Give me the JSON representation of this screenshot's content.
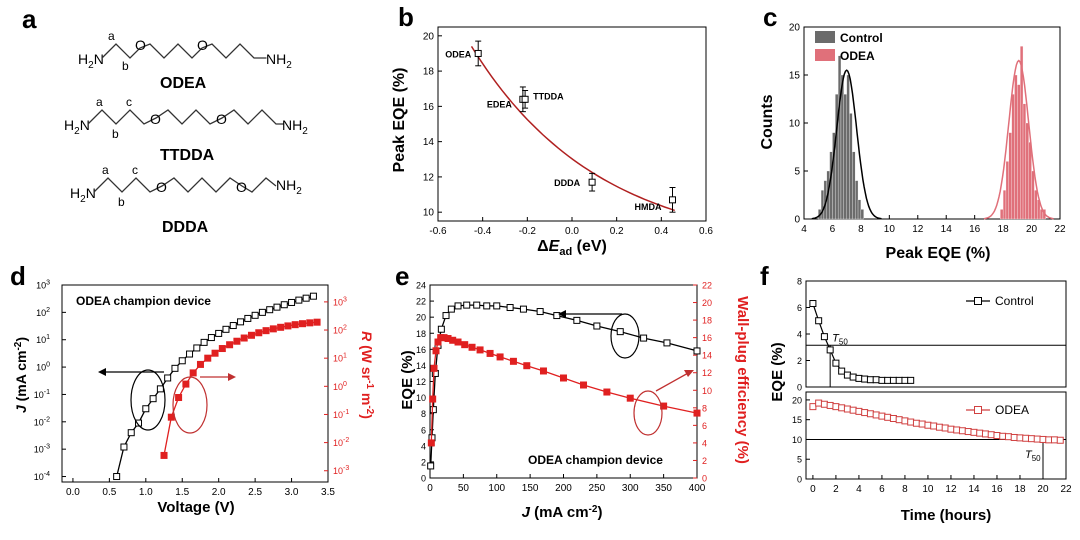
{
  "panel_labels": [
    "a",
    "b",
    "c",
    "d",
    "e",
    "f"
  ],
  "molecules": [
    {
      "name": "ODEA",
      "left": "H2N",
      "right": "NH2",
      "left_main": "H",
      "left_sub": "2",
      "left_tail": "N",
      "right_main": "NH",
      "right_sub": "2",
      "carbon_labels": [
        "a",
        "b"
      ]
    },
    {
      "name": "TTDDA",
      "left": "H2N",
      "right": "NH2",
      "left_main": "H",
      "left_sub": "2",
      "left_tail": "N",
      "right_main": "NH",
      "right_sub": "2",
      "carbon_labels": [
        "a",
        "b",
        "c"
      ]
    },
    {
      "name": "DDDA",
      "left": "H2N",
      "right": "NH2",
      "left_main": "H",
      "left_sub": "2",
      "left_tail": "N",
      "right_main": "NH",
      "right_sub": "2",
      "carbon_labels": [
        "a",
        "b",
        "c"
      ]
    }
  ],
  "atom_O": "O",
  "chart_data": [
    {
      "id": "b",
      "type": "scatter",
      "title": "",
      "xlabel": "ΔE_ad (eV)",
      "xlabel_main": "Δ",
      "xlabel_italic": "E",
      "xlabel_sub": "ad",
      "xlabel_unit": " (eV)",
      "ylabel": "Peak EQE (%)",
      "xlim": [
        -0.6,
        0.6
      ],
      "ylim": [
        9.5,
        20.5
      ],
      "xticks": [
        "-0.6",
        "-0.4",
        "-0.2",
        "0.0",
        "0.2",
        "0.4",
        "0.6"
      ],
      "yticks": [
        "10",
        "12",
        "14",
        "16",
        "18",
        "20"
      ],
      "points": [
        {
          "label": "ODEA",
          "x": -0.42,
          "y": 19.0,
          "err": 0.7
        },
        {
          "label": "EDEA",
          "x": -0.22,
          "y": 16.4,
          "err": 0.7
        },
        {
          "label": "TTDDA",
          "x": -0.21,
          "y": 16.4,
          "err": 0.5
        },
        {
          "label": "DDDA",
          "x": 0.09,
          "y": 11.7,
          "err": 0.5
        },
        {
          "label": "HMDA",
          "x": 0.45,
          "y": 10.7,
          "err": 0.7
        }
      ],
      "fit": {
        "color": "#b02020",
        "x": [
          -0.45,
          0.46
        ],
        "y_start": 19.4,
        "y_end": 10.1
      }
    },
    {
      "id": "c",
      "type": "bar",
      "xlabel": "Peak EQE (%)",
      "ylabel": "Counts",
      "xlim": [
        4,
        22
      ],
      "ylim": [
        0,
        20
      ],
      "xticks": [
        "4",
        "6",
        "8",
        "10",
        "12",
        "14",
        "16",
        "18",
        "20",
        "22"
      ],
      "yticks": [
        "0",
        "5",
        "10",
        "15",
        "20"
      ],
      "legend": {
        "position": "top-left"
      },
      "series": [
        {
          "name": "Control",
          "color": "#6b6b6b",
          "bin_width": 0.2,
          "bins": [
            [
              5.1,
              1
            ],
            [
              5.3,
              3
            ],
            [
              5.5,
              4
            ],
            [
              5.7,
              5
            ],
            [
              5.9,
              7
            ],
            [
              6.1,
              9
            ],
            [
              6.3,
              13
            ],
            [
              6.5,
              17
            ],
            [
              6.7,
              15
            ],
            [
              6.9,
              13
            ],
            [
              7.1,
              15
            ],
            [
              7.3,
              11
            ],
            [
              7.5,
              7
            ],
            [
              7.7,
              4
            ],
            [
              7.9,
              2
            ],
            [
              8.1,
              1
            ]
          ],
          "fit": {
            "color": "#000000",
            "mean": 7.0,
            "sigma": 0.7,
            "peak": 15.5
          }
        },
        {
          "name": "ODEA",
          "color": "#e0707a",
          "bin_width": 0.2,
          "bins": [
            [
              17.9,
              1
            ],
            [
              18.1,
              3
            ],
            [
              18.3,
              6
            ],
            [
              18.5,
              9
            ],
            [
              18.7,
              13
            ],
            [
              18.9,
              15
            ],
            [
              19.1,
              14
            ],
            [
              19.3,
              18
            ],
            [
              19.5,
              12
            ],
            [
              19.7,
              10
            ],
            [
              19.9,
              8
            ],
            [
              20.1,
              5
            ],
            [
              20.3,
              3
            ],
            [
              20.5,
              2
            ],
            [
              20.7,
              1
            ],
            [
              20.9,
              1
            ]
          ],
          "fit": {
            "color": "#e0707a",
            "mean": 19.1,
            "sigma": 0.7,
            "peak": 16.5
          }
        }
      ]
    },
    {
      "id": "d",
      "type": "line",
      "annotation": "ODEA champion device",
      "xlabel": "Voltage (V)",
      "ylabel_left": "J (mA cm-2)",
      "ylabel_left_parts": {
        "italic": "J",
        "mid": " (mA cm",
        "sup": "-2",
        "end": ")"
      },
      "ylabel_right": "R (W sr-1 m-2)",
      "ylabel_right_parts": {
        "italic": "R",
        "mid": " (W sr",
        "sup1": "-1",
        "mid2": " m",
        "sup2": "-2",
        "end": ")"
      },
      "xlim": [
        -0.15,
        3.5
      ],
      "xticks": [
        "0.0",
        "0.5",
        "1.0",
        "1.5",
        "2.0",
        "2.5",
        "3.0",
        "3.5"
      ],
      "ylim_left_log10": [
        -4.2,
        3
      ],
      "yticks_left": [
        {
          "b": "10",
          "e": "-4"
        },
        {
          "b": "10",
          "e": "-3"
        },
        {
          "b": "10",
          "e": "-2"
        },
        {
          "b": "10",
          "e": "-1"
        },
        {
          "b": "10",
          "e": "0"
        },
        {
          "b": "10",
          "e": "1"
        },
        {
          "b": "10",
          "e": "2"
        },
        {
          "b": "10",
          "e": "3"
        }
      ],
      "ylim_right_log10": [
        -3.4,
        3.6
      ],
      "yticks_right": [
        {
          "b": "10",
          "e": "-3"
        },
        {
          "b": "10",
          "e": "-2"
        },
        {
          "b": "10",
          "e": "-1"
        },
        {
          "b": "10",
          "e": "0"
        },
        {
          "b": "10",
          "e": "1"
        },
        {
          "b": "10",
          "e": "2"
        },
        {
          "b": "10",
          "e": "3"
        }
      ],
      "series": [
        {
          "name": "J",
          "axis": "left",
          "color": "#000000",
          "marker": "open-square",
          "x": [
            0.6,
            0.7,
            0.8,
            0.9,
            1.0,
            1.1,
            1.2,
            1.3,
            1.4,
            1.5,
            1.6,
            1.7,
            1.8,
            1.9,
            2.0,
            2.1,
            2.2,
            2.3,
            2.4,
            2.5,
            2.6,
            2.7,
            2.8,
            2.9,
            3.0,
            3.1,
            3.2,
            3.3
          ],
          "y": [
            0.0001,
            0.0012,
            0.004,
            0.009,
            0.03,
            0.07,
            0.16,
            0.4,
            0.9,
            1.7,
            3.0,
            5.0,
            8.0,
            12.0,
            17.0,
            24.0,
            33.0,
            45.0,
            60.0,
            78.0,
            100.0,
            125.0,
            155.0,
            190.0,
            230.0,
            280.0,
            330.0,
            390.0
          ]
        },
        {
          "name": "R",
          "axis": "right",
          "color": "#e02020",
          "marker": "filled-square",
          "x": [
            1.25,
            1.35,
            1.45,
            1.55,
            1.65,
            1.75,
            1.85,
            1.95,
            2.05,
            2.15,
            2.25,
            2.35,
            2.45,
            2.55,
            2.65,
            2.75,
            2.85,
            2.95,
            3.05,
            3.15,
            3.25,
            3.35
          ],
          "y": [
            0.0035,
            0.08,
            0.4,
            1.2,
            3.0,
            6.0,
            10.0,
            15.0,
            22.0,
            30.0,
            40.0,
            52.0,
            65.0,
            80.0,
            95.0,
            110.0,
            125.0,
            140.0,
            155.0,
            168.0,
            180.0,
            190.0
          ]
        }
      ]
    },
    {
      "id": "e",
      "type": "line",
      "annotation": "ODEA champion device",
      "xlabel": "J (mA cm-2)",
      "xlabel_parts": {
        "italic": "J",
        "mid": " (mA cm",
        "sup": "-2",
        "end": ")"
      },
      "ylabel_left": "EQE (%)",
      "ylabel_right": "Wall-plug efficiency (%)",
      "xlim": [
        0,
        400
      ],
      "xticks": [
        "0",
        "50",
        "100",
        "150",
        "200",
        "250",
        "300",
        "350",
        "400"
      ],
      "ylim_left": [
        0,
        24
      ],
      "yticks_left": [
        "0",
        "2",
        "4",
        "6",
        "8",
        "10",
        "12",
        "14",
        "16",
        "18",
        "20",
        "22",
        "24"
      ],
      "ylim_right": [
        0,
        22
      ],
      "yticks_right": [
        "0",
        "2",
        "4",
        "6",
        "8",
        "10",
        "12",
        "14",
        "16",
        "18",
        "20",
        "22"
      ],
      "series": [
        {
          "name": "EQE",
          "axis": "left",
          "color": "#000000",
          "marker": "open-square",
          "x": [
            1,
            3,
            5,
            8,
            12,
            17,
            24,
            32,
            42,
            55,
            70,
            85,
            100,
            120,
            140,
            165,
            190,
            220,
            250,
            285,
            320,
            355,
            400
          ],
          "y": [
            1.5,
            5.0,
            8.5,
            13.0,
            16.5,
            18.5,
            20.2,
            21.0,
            21.4,
            21.5,
            21.5,
            21.4,
            21.4,
            21.2,
            21.0,
            20.7,
            20.2,
            19.6,
            18.9,
            18.2,
            17.4,
            16.8,
            15.8
          ]
        },
        {
          "name": "Wall-plug efficiency",
          "axis": "right",
          "color": "#e02020",
          "marker": "filled-square",
          "x": [
            2,
            4,
            6,
            9,
            12,
            16,
            21,
            27,
            34,
            42,
            52,
            63,
            75,
            90,
            105,
            125,
            145,
            170,
            200,
            230,
            265,
            300,
            350,
            400
          ],
          "y": [
            4.0,
            9.0,
            12.5,
            14.5,
            15.5,
            16.0,
            16.0,
            15.9,
            15.7,
            15.5,
            15.2,
            14.9,
            14.6,
            14.2,
            13.8,
            13.3,
            12.8,
            12.2,
            11.4,
            10.6,
            9.8,
            9.1,
            8.2,
            7.4
          ]
        }
      ]
    },
    {
      "id": "f",
      "type": "line",
      "xlabel": "Time (hours)",
      "ylabel": "EQE (%)",
      "xlim": [
        -0.6,
        22
      ],
      "xticks": [
        "0",
        "2",
        "4",
        "6",
        "8",
        "10",
        "12",
        "14",
        "16",
        "18",
        "20",
        "22"
      ],
      "subplots": [
        {
          "name": "Control",
          "color": "#000000",
          "ylim": [
            0,
            8
          ],
          "yticks": [
            "0",
            "2",
            "4",
            "6",
            "8"
          ],
          "legend": "Control",
          "t50_label": "T50",
          "t50_x": 1.5,
          "threshold_y": 3.15,
          "x": [
            0,
            0.5,
            1,
            1.5,
            2,
            2.5,
            3,
            3.5,
            4,
            4.5,
            5,
            5.5,
            6,
            6.5,
            7,
            7.5,
            8,
            8.5
          ],
          "y": [
            6.3,
            5.0,
            3.8,
            2.8,
            1.8,
            1.2,
            0.9,
            0.75,
            0.65,
            0.6,
            0.55,
            0.55,
            0.5,
            0.5,
            0.5,
            0.5,
            0.5,
            0.5
          ]
        },
        {
          "name": "ODEA",
          "color": "#d04040",
          "ylim": [
            0,
            22
          ],
          "yticks": [
            "0",
            "5",
            "10",
            "15",
            "20"
          ],
          "legend": "ODEA",
          "t50_label": "T50",
          "t50_x": 20.0,
          "threshold_y": 10.0,
          "x": [
            0,
            0.5,
            1,
            1.5,
            2,
            2.5,
            3,
            3.5,
            4,
            4.5,
            5,
            5.5,
            6,
            6.5,
            7,
            7.5,
            8,
            8.5,
            9,
            9.5,
            10,
            10.5,
            11,
            11.5,
            12,
            12.5,
            13,
            13.5,
            14,
            14.5,
            15,
            15.5,
            16,
            16.5,
            17,
            17.5,
            18,
            18.5,
            19,
            19.5,
            20,
            20.5,
            21,
            21.5
          ],
          "y": [
            18.3,
            19.2,
            18.9,
            18.6,
            18.3,
            18.0,
            17.7,
            17.4,
            17.1,
            16.8,
            16.5,
            16.2,
            15.9,
            15.6,
            15.3,
            15.0,
            14.7,
            14.4,
            14.1,
            13.9,
            13.6,
            13.4,
            13.1,
            12.9,
            12.6,
            12.4,
            12.2,
            12.0,
            11.8,
            11.6,
            11.4,
            11.2,
            11.0,
            10.8,
            10.7,
            10.5,
            10.4,
            10.3,
            10.2,
            10.1,
            10.0,
            9.9,
            9.9,
            9.8
          ]
        }
      ]
    }
  ]
}
